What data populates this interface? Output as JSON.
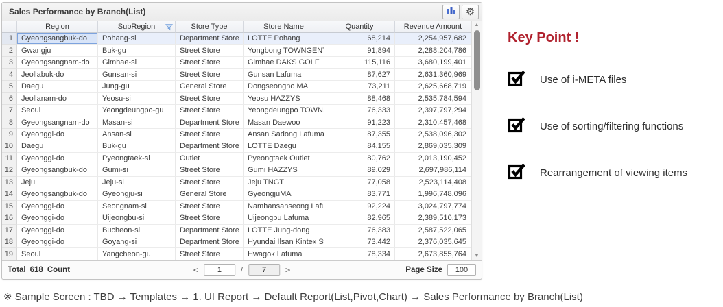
{
  "panel": {
    "title": "Sales Performance by Branch(List)",
    "toolbar": {
      "chart_button": "bar-chart",
      "settings_button": "gear"
    },
    "grid": {
      "columns": [
        "Region",
        "SubRegion",
        "Store Type",
        "Store Name",
        "Quantity",
        "Revenue Amount"
      ],
      "filtered_column": "SubRegion",
      "rows": [
        {
          "num": "1",
          "region": "Gyeongsangbuk-do",
          "subregion": "Pohang-si",
          "store_type": "Department Store",
          "store_name": "LOTTE Pohang",
          "quantity": "68,214",
          "revenue": "2,254,957,682",
          "selected": true
        },
        {
          "num": "2",
          "region": "Gwangju",
          "subregion": "Buk-gu",
          "store_type": "Street Store",
          "store_name": "Yongbong TOWNGENT",
          "quantity": "91,894",
          "revenue": "2,288,204,786"
        },
        {
          "num": "3",
          "region": "Gyeongsangnam-do",
          "subregion": "Gimhae-si",
          "store_type": "Street Store",
          "store_name": "Gimhae DAKS GOLF",
          "quantity": "115,116",
          "revenue": "3,680,199,401"
        },
        {
          "num": "4",
          "region": "Jeollabuk-do",
          "subregion": "Gunsan-si",
          "store_type": "Street Store",
          "store_name": "Gunsan Lafuma",
          "quantity": "87,627",
          "revenue": "2,631,360,969"
        },
        {
          "num": "5",
          "region": "Daegu",
          "subregion": "Jung-gu",
          "store_type": "General Store",
          "store_name": "Dongseongno MA",
          "quantity": "73,211",
          "revenue": "2,625,668,719"
        },
        {
          "num": "6",
          "region": "Jeollanam-do",
          "subregion": "Yeosu-si",
          "store_type": "Street Store",
          "store_name": "Yeosu HAZZYS",
          "quantity": "88,468",
          "revenue": "2,535,784,594"
        },
        {
          "num": "7",
          "region": "Seoul",
          "subregion": "Yeongdeungpo-gu",
          "store_type": "Street Store",
          "store_name": "Yeongdeungpo TOWN...",
          "quantity": "76,333",
          "revenue": "2,397,797,294"
        },
        {
          "num": "8",
          "region": "Gyeongsangnam-do",
          "subregion": "Masan-si",
          "store_type": "Department Store",
          "store_name": "Masan Daewoo",
          "quantity": "91,223",
          "revenue": "2,310,457,468"
        },
        {
          "num": "9",
          "region": "Gyeonggi-do",
          "subregion": "Ansan-si",
          "store_type": "Street Store",
          "store_name": "Ansan Sadong Lafuma",
          "quantity": "87,355",
          "revenue": "2,538,096,302"
        },
        {
          "num": "10",
          "region": "Daegu",
          "subregion": "Buk-gu",
          "store_type": "Department Store",
          "store_name": "LOTTE Daegu",
          "quantity": "84,155",
          "revenue": "2,869,035,309"
        },
        {
          "num": "11",
          "region": "Gyeonggi-do",
          "subregion": "Pyeongtaek-si",
          "store_type": "Outlet",
          "store_name": "Pyeongtaek Outlet",
          "quantity": "80,762",
          "revenue": "2,013,190,452"
        },
        {
          "num": "12",
          "region": "Gyeongsangbuk-do",
          "subregion": "Gumi-si",
          "store_type": "Street Store",
          "store_name": "Gumi HAZZYS",
          "quantity": "89,029",
          "revenue": "2,697,986,114"
        },
        {
          "num": "13",
          "region": "Jeju",
          "subregion": "Jeju-si",
          "store_type": "Street Store",
          "store_name": "Jeju TNGT",
          "quantity": "77,058",
          "revenue": "2,523,114,408"
        },
        {
          "num": "14",
          "region": "Gyeongsangbuk-do",
          "subregion": "Gyeongju-si",
          "store_type": "General Store",
          "store_name": "GyeongjuMA",
          "quantity": "83,771",
          "revenue": "1,996,748,096"
        },
        {
          "num": "15",
          "region": "Gyeonggi-do",
          "subregion": "Seongnam-si",
          "store_type": "Street Store",
          "store_name": "Namhansanseong Lafu...",
          "quantity": "92,224",
          "revenue": "3,024,797,774"
        },
        {
          "num": "16",
          "region": "Gyeonggi-do",
          "subregion": "Uijeongbu-si",
          "store_type": "Street Store",
          "store_name": "Uijeongbu Lafuma",
          "quantity": "82,965",
          "revenue": "2,389,510,173"
        },
        {
          "num": "17",
          "region": "Gyeonggi-do",
          "subregion": "Bucheon-si",
          "store_type": "Department Store",
          "store_name": "LOTTE Jung-dong",
          "quantity": "76,383",
          "revenue": "2,587,522,065"
        },
        {
          "num": "18",
          "region": "Gyeonggi-do",
          "subregion": "Goyang-si",
          "store_type": "Department Store",
          "store_name": "Hyundai Ilsan Kintex St...",
          "quantity": "73,442",
          "revenue": "2,376,035,645"
        },
        {
          "num": "19",
          "region": "Seoul",
          "subregion": "Yangcheon-gu",
          "store_type": "Street Store",
          "store_name": "Hwagok Lafuma",
          "quantity": "78,334",
          "revenue": "2,673,855,764"
        }
      ]
    },
    "footer": {
      "total_label": "Total",
      "total_value": "618",
      "count_label": "Count",
      "prev_glyph": "<",
      "next_glyph": ">",
      "current_page": "1",
      "page_separator": "/",
      "total_pages": "7",
      "page_size_label": "Page Size",
      "page_size_value": "100"
    },
    "scrollbar": {
      "up_glyph": "▲",
      "down_glyph": "▼"
    }
  },
  "key_points": {
    "heading": "Key Point !",
    "heading_color": "#b0222e",
    "items": [
      "Use of i-META files",
      "Use of sorting/filtering functions",
      "Rearrangement of viewing items"
    ]
  },
  "caption": "※ Sample Screen : TBD → Templates → 1. UI Report → Default Report(List,Pivot,Chart) → Sales Performance by Branch(List)"
}
